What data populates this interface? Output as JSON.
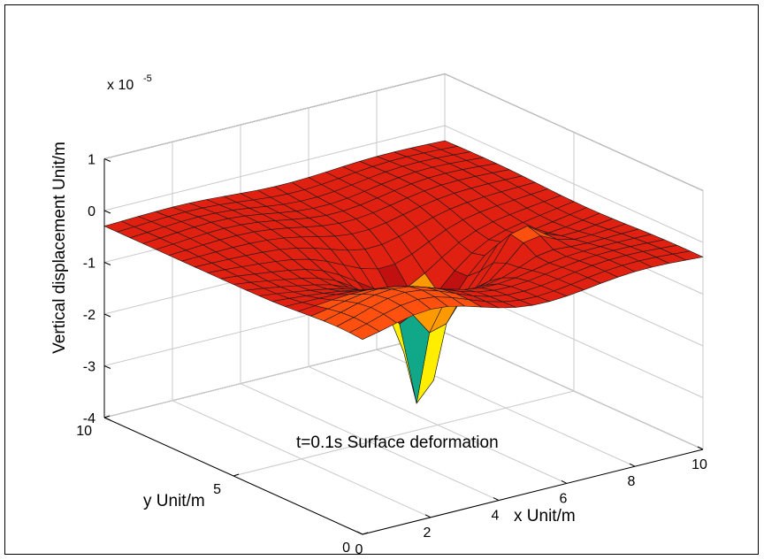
{
  "chart_data": {
    "type": "surface",
    "title": "t=0.1s Surface deformation",
    "xlabel": "x  Unit/m",
    "ylabel": "y  Unit/m",
    "zlabel": "Vertical displacement  Unit/m",
    "exponent_label": "x 10",
    "exponent_power": "-5",
    "xlim": [
      0,
      10
    ],
    "ylim": [
      0,
      10
    ],
    "zlim": [
      -4,
      1
    ],
    "x_ticks": [
      {
        "value": 0,
        "label": "0"
      },
      {
        "value": 2,
        "label": "2"
      },
      {
        "value": 4,
        "label": "4"
      },
      {
        "value": 6,
        "label": "6"
      },
      {
        "value": 8,
        "label": "8"
      },
      {
        "value": 10,
        "label": "10"
      }
    ],
    "y_ticks": [
      {
        "value": 0,
        "label": "0"
      },
      {
        "value": 5,
        "label": "5"
      },
      {
        "value": 10,
        "label": "10"
      }
    ],
    "z_ticks": [
      {
        "value": 1,
        "label": "1"
      },
      {
        "value": 0,
        "label": "0"
      },
      {
        "value": -1,
        "label": "-1"
      },
      {
        "value": -2,
        "label": "-2"
      },
      {
        "value": -3,
        "label": "-3"
      },
      {
        "value": -4,
        "label": "-4"
      }
    ],
    "grid": true,
    "grid_divisions": 20,
    "surface_model": {
      "baseline": -0.3,
      "pit_center_x": 5.2,
      "pit_center_y": 4.6,
      "pit_depth": -4.0,
      "bowl_depth": -1.9,
      "rim_center_x": 7.2,
      "rim_center_y": 3.5,
      "rim_height": 0.6
    },
    "colors": {
      "surface_high": "#ff5010",
      "surface_mid": "#e02010",
      "surface_low": "#c01010",
      "wall_yellow": "#ffee00",
      "wall_teal": "#10a888",
      "orange": "#ff9900",
      "edge": "#1a1a1a",
      "grid": "#c8c8c8",
      "axis": "#000000"
    }
  }
}
